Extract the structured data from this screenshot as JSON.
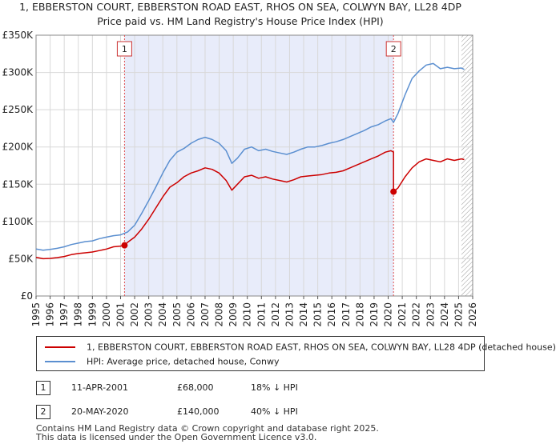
{
  "chart_data": {
    "type": "line",
    "title": "1, EBBERSTON COURT, EBBERSTON ROAD EAST, RHOS ON SEA, COLWYN BAY, LL28 4DP",
    "subtitle": "Price paid vs. HM Land Registry's House Price Index (HPI)",
    "xlim": [
      1995,
      2026
    ],
    "ylim": [
      0,
      350000
    ],
    "x_ticks": [
      "1995",
      "1996",
      "1997",
      "1998",
      "1999",
      "2000",
      "2001",
      "2002",
      "2003",
      "2004",
      "2005",
      "2006",
      "2007",
      "2008",
      "2009",
      "2010",
      "2011",
      "2012",
      "2013",
      "2014",
      "2015",
      "2016",
      "2017",
      "2018",
      "2019",
      "2020",
      "2021",
      "2022",
      "2023",
      "2024",
      "2025",
      "2026"
    ],
    "y_ticks": [
      {
        "value": 0,
        "label": "£0"
      },
      {
        "value": 50000,
        "label": "£50K"
      },
      {
        "value": 100000,
        "label": "£100K"
      },
      {
        "value": 150000,
        "label": "£150K"
      },
      {
        "value": 200000,
        "label": "£200K"
      },
      {
        "value": 250000,
        "label": "£250K"
      },
      {
        "value": 300000,
        "label": "£300K"
      },
      {
        "value": 350000,
        "label": "£350K"
      }
    ],
    "shaded_period": [
      2001.28,
      2020.38
    ],
    "forecast_hatch_from": 2025.2,
    "series": [
      {
        "name": "1, EBBERSTON COURT, EBBERSTON ROAD EAST, RHOS ON SEA, COLWYN BAY, LL28 4DP (detached house)",
        "color": "#cc0000",
        "x": [
          1995.0,
          1995.5,
          1996.0,
          1996.5,
          1997.0,
          1997.5,
          1998.0,
          1998.5,
          1999.0,
          1999.5,
          2000.0,
          2000.5,
          2001.0,
          2001.28,
          2001.28,
          2001.5,
          2002.0,
          2002.5,
          2003.0,
          2003.5,
          2004.0,
          2004.5,
          2005.0,
          2005.5,
          2006.0,
          2006.5,
          2007.0,
          2007.5,
          2008.0,
          2008.5,
          2008.9,
          2009.3,
          2009.8,
          2010.3,
          2010.8,
          2011.3,
          2011.8,
          2012.3,
          2012.8,
          2013.3,
          2013.8,
          2014.3,
          2014.8,
          2015.3,
          2015.8,
          2016.3,
          2016.8,
          2017.3,
          2017.8,
          2018.3,
          2018.8,
          2019.3,
          2019.8,
          2020.2,
          2020.38,
          2020.38,
          2020.7,
          2021.2,
          2021.7,
          2022.2,
          2022.7,
          2023.2,
          2023.7,
          2024.2,
          2024.7,
          2025.2,
          2025.4
        ],
        "y": [
          52000,
          50000,
          50500,
          51500,
          53000,
          55500,
          57000,
          58000,
          59000,
          61000,
          63000,
          66000,
          67000,
          68000,
          68000,
          72000,
          79000,
          90000,
          103000,
          118000,
          133000,
          146000,
          152000,
          160000,
          165000,
          168000,
          172000,
          170000,
          165000,
          155000,
          142000,
          150000,
          160000,
          162000,
          158000,
          160000,
          157000,
          155000,
          153000,
          156000,
          160000,
          161000,
          162000,
          163000,
          165000,
          166000,
          168000,
          172000,
          176000,
          180000,
          184000,
          188000,
          193000,
          195000,
          193000,
          140000,
          145000,
          160000,
          172000,
          180000,
          184000,
          182000,
          180000,
          184000,
          182000,
          184000,
          183000
        ]
      },
      {
        "name": "HPI: Average price, detached house, Conwy",
        "color": "#5b8fd0",
        "x": [
          1995.0,
          1995.5,
          1996.0,
          1996.5,
          1997.0,
          1997.5,
          1998.0,
          1998.5,
          1999.0,
          1999.5,
          2000.0,
          2000.5,
          2001.0,
          2001.5,
          2002.0,
          2002.5,
          2003.0,
          2003.5,
          2004.0,
          2004.5,
          2005.0,
          2005.5,
          2006.0,
          2006.5,
          2007.0,
          2007.5,
          2008.0,
          2008.5,
          2008.9,
          2009.3,
          2009.8,
          2010.3,
          2010.8,
          2011.3,
          2011.8,
          2012.3,
          2012.8,
          2013.3,
          2013.8,
          2014.3,
          2014.8,
          2015.3,
          2015.8,
          2016.3,
          2016.8,
          2017.3,
          2017.8,
          2018.3,
          2018.8,
          2019.3,
          2019.8,
          2020.2,
          2020.38,
          2020.7,
          2021.2,
          2021.7,
          2022.2,
          2022.7,
          2023.2,
          2023.7,
          2024.2,
          2024.7,
          2025.2,
          2025.4
        ],
        "y": [
          63000,
          61500,
          62500,
          64000,
          66000,
          69000,
          71000,
          73000,
          74000,
          77000,
          79000,
          81000,
          82000,
          86000,
          95000,
          111000,
          128000,
          146000,
          165000,
          182000,
          193000,
          198000,
          205000,
          210000,
          213000,
          210000,
          205000,
          195000,
          178000,
          185000,
          197000,
          200000,
          195000,
          197000,
          194000,
          192000,
          190000,
          193000,
          197000,
          200000,
          200000,
          202000,
          205000,
          207000,
          210000,
          214000,
          218000,
          222000,
          227000,
          230000,
          235000,
          238000,
          233000,
          245000,
          270000,
          292000,
          302000,
          310000,
          312000,
          305000,
          307000,
          305000,
          306000,
          304000
        ]
      }
    ],
    "sales": [
      {
        "label": "1",
        "x": 2001.28,
        "y": 68000
      },
      {
        "label": "2",
        "x": 2020.38,
        "y": 140000
      }
    ]
  },
  "legend": {
    "property_label": "1, EBBERSTON COURT, EBBERSTON ROAD EAST, RHOS ON SEA, COLWYN BAY, LL28 4DP (detached house)",
    "hpi_label": "HPI: Average price, detached house, Conwy",
    "property_color": "#cc0000",
    "hpi_color": "#5b8fd0"
  },
  "sales_table": [
    {
      "num": "1",
      "date": "11-APR-2001",
      "price": "£68,000",
      "hpi": "18% ↓ HPI"
    },
    {
      "num": "2",
      "date": "20-MAY-2020",
      "price": "£140,000",
      "hpi": "40% ↓ HPI"
    }
  ],
  "footer": {
    "line1": "Contains HM Land Registry data © Crown copyright and database right 2025.",
    "line2": "This data is licensed under the Open Government Licence v3.0."
  }
}
